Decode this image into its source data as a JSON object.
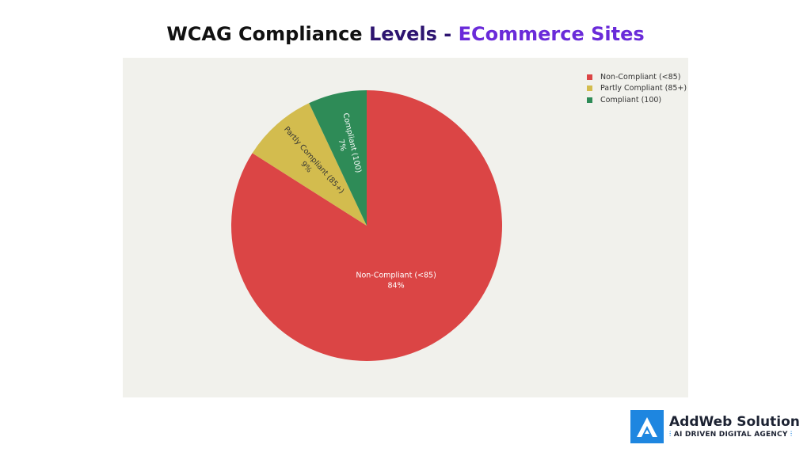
{
  "header": {
    "title_part1": "WCAG Compliance ",
    "title_part2": "Levels - ",
    "title_part3": "ECommerce Sites"
  },
  "chart_data": {
    "type": "pie",
    "title": "WCAG Compliance Levels - ECommerce Sites",
    "slices": [
      {
        "label": "Non-Compliant (<85)",
        "value": 84,
        "pct_text": "84%",
        "color": "#db4545"
      },
      {
        "label": "Partly Compliant (85+)",
        "value": 9,
        "pct_text": "9%",
        "color": "#d3bc4e"
      },
      {
        "label": "Compliant (100)",
        "value": 7,
        "pct_text": "7%",
        "color": "#2e8b57"
      }
    ],
    "legend_position": "top-right",
    "background": "#f1f1ec"
  },
  "brand": {
    "name": "AddWeb Solution",
    "tagline": "AI DRIVEN DIGITAL AGENCY",
    "logo_icon": "addweb-logo-icon",
    "accent_color": "#1e86e0"
  }
}
